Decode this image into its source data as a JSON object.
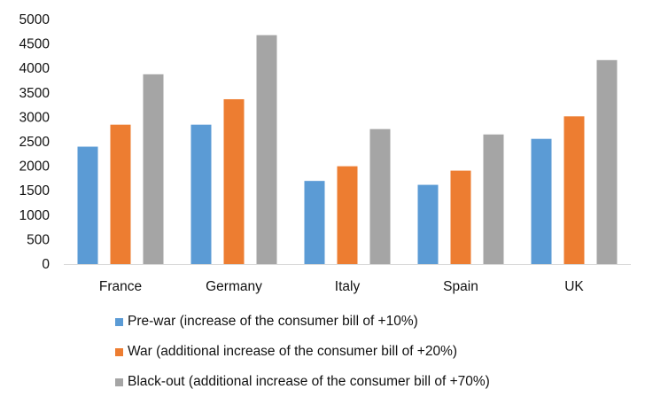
{
  "chart_data": {
    "type": "bar",
    "categories": [
      "France",
      "Germany",
      "Italy",
      "Spain",
      "UK"
    ],
    "series": [
      {
        "name": "Pre-war (increase of the consumer bill of +10%)",
        "values": [
          2400,
          2850,
          1700,
          1620,
          2560
        ],
        "color": "#5B9BD5"
      },
      {
        "name": "War (additional increase of the consumer bill of +20%)",
        "values": [
          2850,
          3370,
          2000,
          1910,
          3020
        ],
        "color": "#ED7D31"
      },
      {
        "name": "Black-out (additional increase of the consumer bill of +70%)",
        "values": [
          3880,
          4680,
          2760,
          2650,
          4170
        ],
        "color": "#A5A5A5"
      }
    ],
    "yticks": [
      "0",
      "500",
      "1000",
      "1500",
      "2000",
      "2500",
      "3000",
      "3500",
      "4000",
      "4500",
      "5000"
    ],
    "ylim": [
      0,
      5000
    ],
    "grid": false,
    "legend_position": "bottom",
    "axis_color": "#D9D9D9",
    "text_color": "#111111"
  }
}
